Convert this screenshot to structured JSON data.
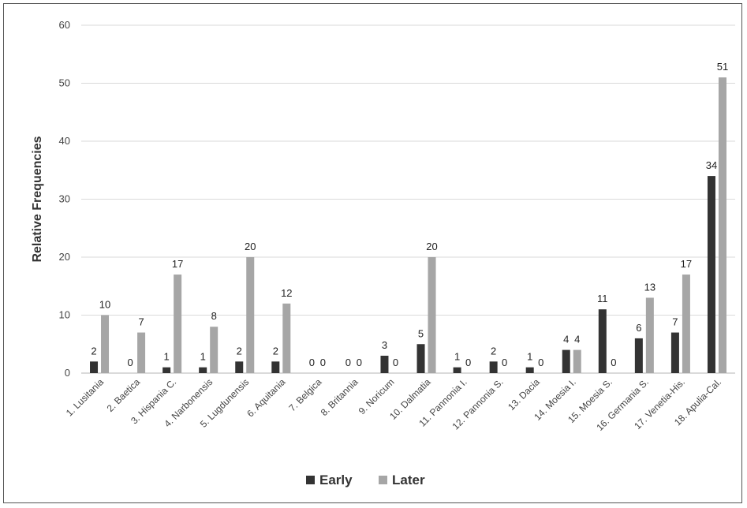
{
  "chart_data": {
    "type": "bar",
    "title": "",
    "xlabel": "",
    "ylabel": "Relative Frequencies",
    "ylim": [
      0,
      60
    ],
    "yticks": [
      0,
      10,
      20,
      30,
      40,
      50,
      60
    ],
    "grid": true,
    "legend_position": "bottom",
    "categories": [
      "1. Lusitania",
      "2. Baetica",
      "3. Hispania C.",
      "4. Narbonensis",
      "5. Lugdunensis",
      "6. Aquitania",
      "7. Belgica",
      "8. Britannia",
      "9. Noricum",
      "10. Dalmatia",
      "11. Pannonia I.",
      "12. Pannonia S.",
      "13. Dacia",
      "14. Moesia I.",
      "15. Moesia S.",
      "16. Germania S.",
      "17. Venetia-His.",
      "18. Apulia-Cal."
    ],
    "series": [
      {
        "name": "Early",
        "color": "#333333",
        "values": [
          2,
          0,
          1,
          1,
          2,
          2,
          0,
          0,
          3,
          5,
          1,
          2,
          1,
          4,
          11,
          6,
          7,
          34
        ]
      },
      {
        "name": "Later",
        "color": "#a6a6a6",
        "values": [
          10,
          7,
          17,
          8,
          20,
          12,
          0,
          0,
          0,
          20,
          0,
          0,
          0,
          4,
          0,
          13,
          17,
          51
        ]
      }
    ]
  }
}
